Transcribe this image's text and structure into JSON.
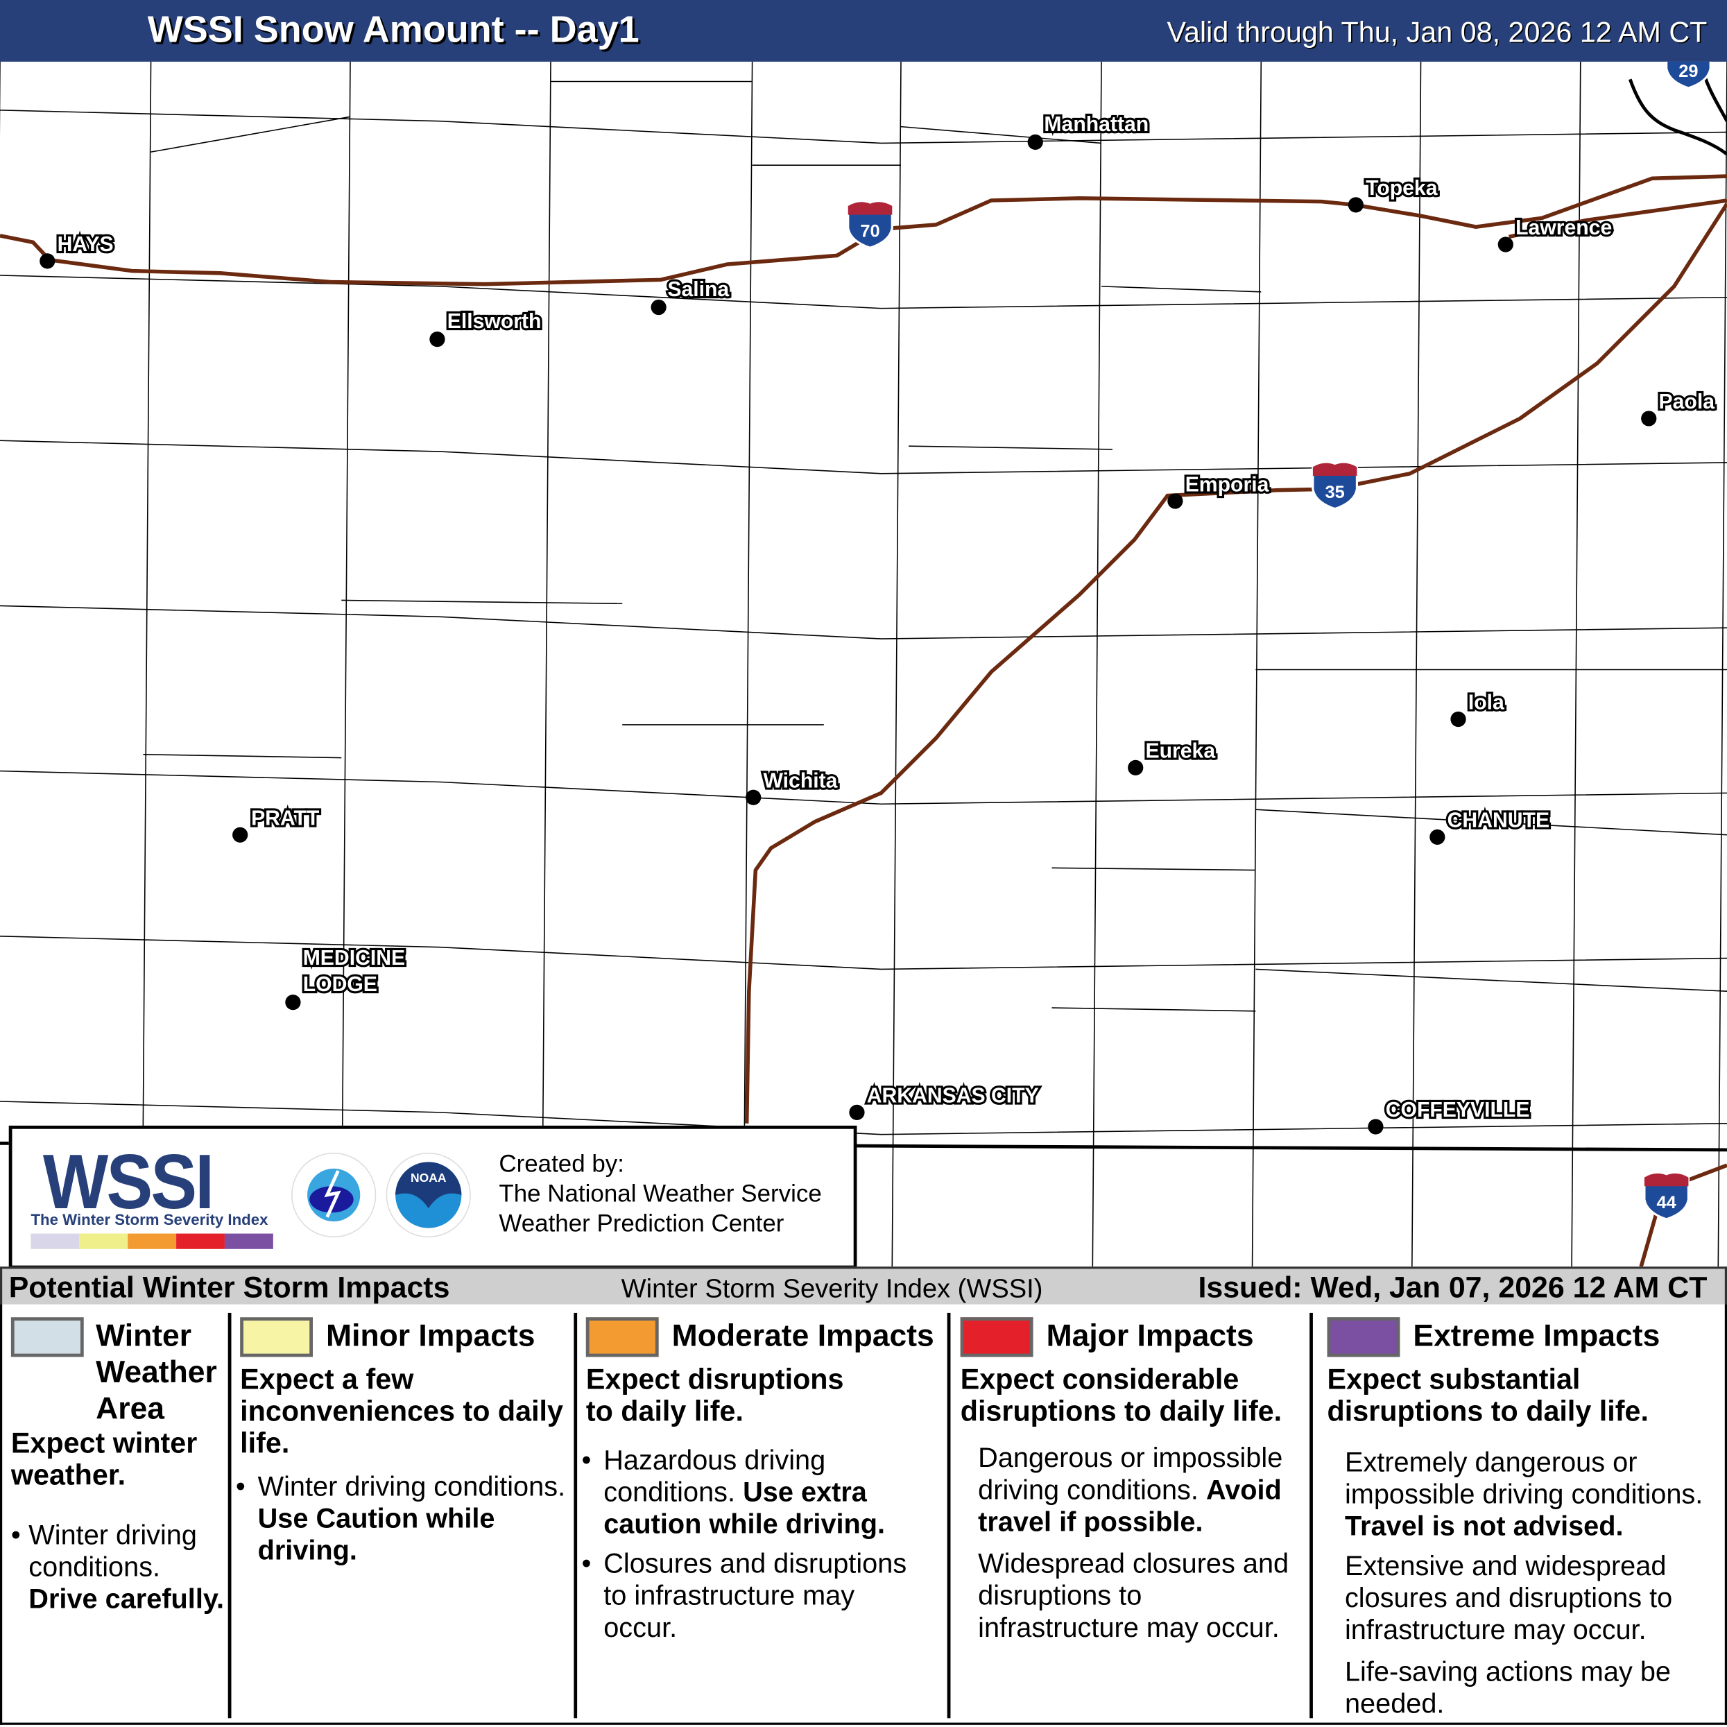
{
  "header": {
    "title": "WSSI Snow Amount -- Day1",
    "valid": "Valid through Thu, Jan 08, 2026 12 AM CT"
  },
  "map": {
    "cities": [
      "HAYS",
      "Ellsworth",
      "Salina",
      "Manhattan",
      "Topeka",
      "Lawrence",
      "Paola",
      "Emporia",
      "Iola",
      "Eureka",
      "Wichita",
      "PRATT",
      "CHANUTE",
      "MEDICINE",
      "LODGE",
      "ARKANSAS CITY",
      "COFFEYVILLE"
    ],
    "interstates": [
      "70",
      "35",
      "44",
      "29"
    ],
    "road_color": "#6b2a10"
  },
  "logo": {
    "wssi": "WSSI",
    "tm": "TM",
    "subtitle": "The Winter Storm Severity Index",
    "nws_text": "NATIONAL WEATHER SERVICE",
    "noaa_text": "NOAA",
    "created_by": "Created by:",
    "org1": "The National Weather Service",
    "org2": "Weather Prediction Center",
    "bar_colors": [
      "#d8d6e8",
      "#efef8c",
      "#f39a31",
      "#e4202a",
      "#7b4fa2"
    ]
  },
  "legend": {
    "title": "Potential Winter Storm Impacts",
    "index_name": "Winter Storm Severity Index (WSSI)",
    "issued": "Issued: Wed, Jan 07, 2026 12 AM CT",
    "categories": [
      {
        "label1": "Winter",
        "label2": "Weather",
        "label3": "Area",
        "color": "#d3dfe7",
        "lead": "Expect winter weather.",
        "b1": "Winter driving conditions.",
        "b1_bold": "Drive carefully."
      },
      {
        "label": "Minor Impacts",
        "color": "#f7f4a6",
        "lead": "Expect a few inconveniences to daily life.",
        "b1": "Winter driving conditions.",
        "b1_bold": "Use Caution while driving."
      },
      {
        "label": "Moderate Impacts",
        "color": "#f39a31",
        "lead": "Expect disruptions to daily life.",
        "b1": "Hazardous driving conditions.",
        "b1_bold": "Use extra caution while driving.",
        "b2": "Closures and disruptions to infrastructure may occur."
      },
      {
        "label": "Major Impacts",
        "color": "#e4202a",
        "lead": "Expect considerable disruptions to daily life.",
        "b1": "Dangerous or impossible driving conditions.",
        "b1_bold": "Avoid travel if possible.",
        "b2": "Widespread closures and disruptions to infrastructure may occur."
      },
      {
        "label": "Extreme Impacts",
        "color": "#7b4fa2",
        "lead": "Expect substantial disruptions to daily life.",
        "b1": "Extremely dangerous or impossible driving conditions.",
        "b1_bold": "Travel is not advised.",
        "b2": "Extensive and widespread closures and disruptions to infrastructure may occur.",
        "b3": "Life-saving actions may be needed."
      }
    ]
  }
}
